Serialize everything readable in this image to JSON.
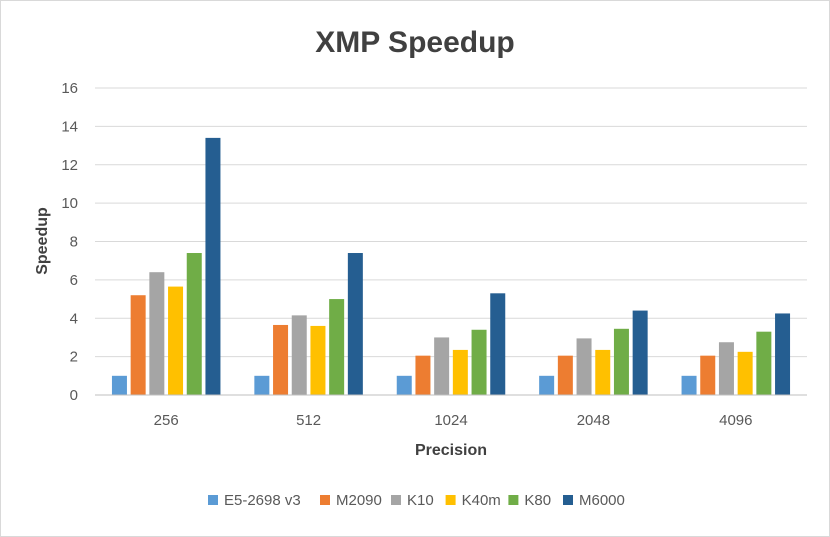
{
  "chart_data": {
    "type": "bar",
    "title": "XMP Speedup",
    "xlabel": "Precision",
    "ylabel": "Speedup",
    "categories": [
      "256",
      "512",
      "1024",
      "2048",
      "4096"
    ],
    "ylim": [
      0,
      16
    ],
    "yticks": [
      0,
      2,
      4,
      6,
      8,
      10,
      12,
      14,
      16
    ],
    "grid": true,
    "legend_position": "bottom",
    "series": [
      {
        "name": "E5-2698 v3",
        "color": "#5b9bd5",
        "values": [
          1,
          1,
          1,
          1,
          1
        ]
      },
      {
        "name": "M2090",
        "color": "#ed7d31",
        "values": [
          5.2,
          3.65,
          2.05,
          2.05,
          2.05
        ]
      },
      {
        "name": "K10",
        "color": "#a5a5a5",
        "values": [
          6.4,
          4.15,
          3.0,
          2.95,
          2.75
        ]
      },
      {
        "name": "K40m",
        "color": "#ffc000",
        "values": [
          5.65,
          3.6,
          2.35,
          2.35,
          2.25
        ]
      },
      {
        "name": "K80",
        "color": "#70ad47",
        "values": [
          7.4,
          5.0,
          3.4,
          3.45,
          3.3
        ]
      },
      {
        "name": "M6000",
        "color": "#255e91",
        "values": [
          13.4,
          7.4,
          5.3,
          4.4,
          4.25
        ]
      }
    ]
  }
}
